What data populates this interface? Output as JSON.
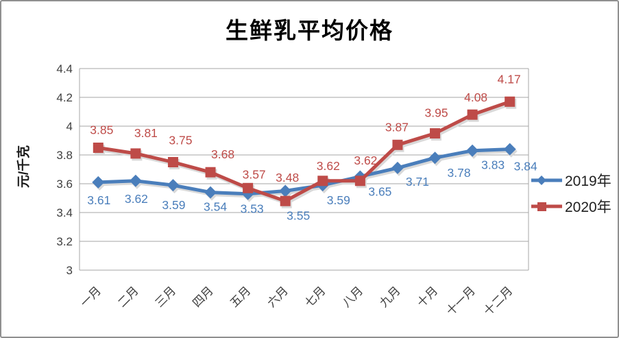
{
  "title": "生鲜乳平均价格",
  "y_axis_title": "元/千克",
  "chart_data": {
    "type": "line",
    "title": "生鲜乳平均价格",
    "ylabel": "元/千克",
    "xlabel": "",
    "categories": [
      "一月",
      "二月",
      "三月",
      "四月",
      "五月",
      "六月",
      "七月",
      "八月",
      "九月",
      "十月",
      "十一月",
      "十二月"
    ],
    "series": [
      {
        "name": "2019年",
        "color": "#4a7ebb",
        "marker": "diamond",
        "label_position": "below",
        "values": [
          3.61,
          3.62,
          3.59,
          3.54,
          3.53,
          3.55,
          3.59,
          3.65,
          3.71,
          3.78,
          3.83,
          3.84
        ],
        "label_dx": [
          1,
          1,
          1,
          7,
          6,
          19,
          23,
          29,
          29,
          35,
          30,
          23
        ],
        "label_dy": [
          26,
          26,
          29,
          21,
          22,
          36,
          22,
          22,
          20,
          22,
          21,
          25
        ]
      },
      {
        "name": "2020年",
        "color": "#be4b48",
        "marker": "square",
        "label_position": "above",
        "values": [
          3.85,
          3.81,
          3.75,
          3.68,
          3.57,
          3.48,
          3.62,
          3.62,
          3.87,
          3.95,
          4.08,
          4.17
        ],
        "label_dx": [
          5,
          15,
          11,
          18,
          9,
          3,
          8,
          8,
          -1,
          2,
          5,
          -1
        ],
        "label_dy": [
          -26,
          -30,
          -32,
          -26,
          -20,
          -34,
          -22,
          -30,
          -26,
          -30,
          -25,
          -33
        ]
      }
    ],
    "ylim": [
      3,
      4.4
    ],
    "yticks": [
      3,
      3.2,
      3.4,
      3.6,
      3.8,
      4,
      4.2,
      4.4
    ],
    "ytick_labels": [
      "3",
      "3.2",
      "3.4",
      "3.6",
      "3.8",
      "4",
      "4.2",
      "4.4"
    ],
    "grid": true,
    "legend_position": "right",
    "colors": {
      "gridline": "#a6a6a6",
      "axis_text": "#3f3f3f",
      "shadow": "#d9d9d9"
    }
  }
}
